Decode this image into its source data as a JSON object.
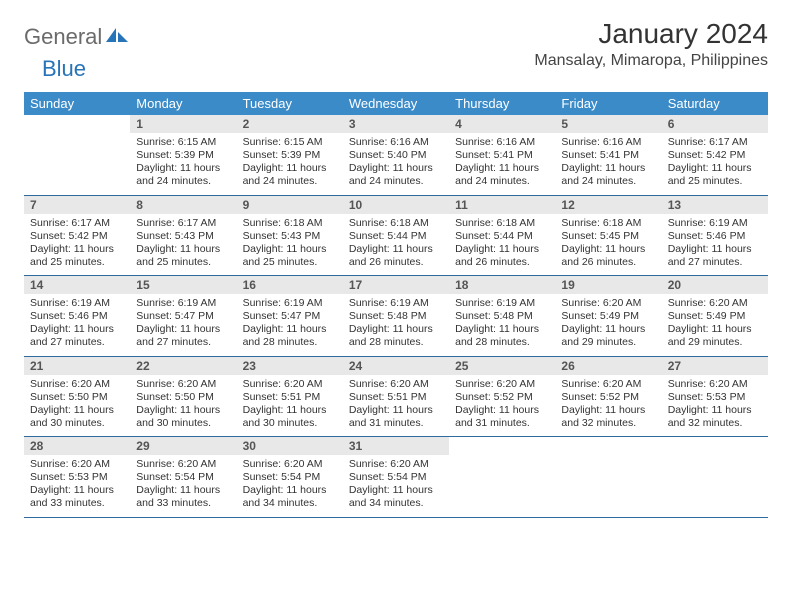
{
  "logo": {
    "part1": "General",
    "part2": "Blue"
  },
  "title": "January 2024",
  "location": "Mansalay, Mimaropa, Philippines",
  "colors": {
    "header_bg": "#3b8bc9",
    "header_text": "#ffffff",
    "daynum_bg": "#e8e8e8",
    "border": "#2c6aa0",
    "logo_gray": "#6b6b6b",
    "logo_blue": "#2874b8"
  },
  "weekdays": [
    "Sunday",
    "Monday",
    "Tuesday",
    "Wednesday",
    "Thursday",
    "Friday",
    "Saturday"
  ],
  "weeks": [
    [
      {
        "empty": true
      },
      {
        "day": "1",
        "sunrise": "Sunrise: 6:15 AM",
        "sunset": "Sunset: 5:39 PM",
        "daylight": "Daylight: 11 hours and 24 minutes."
      },
      {
        "day": "2",
        "sunrise": "Sunrise: 6:15 AM",
        "sunset": "Sunset: 5:39 PM",
        "daylight": "Daylight: 11 hours and 24 minutes."
      },
      {
        "day": "3",
        "sunrise": "Sunrise: 6:16 AM",
        "sunset": "Sunset: 5:40 PM",
        "daylight": "Daylight: 11 hours and 24 minutes."
      },
      {
        "day": "4",
        "sunrise": "Sunrise: 6:16 AM",
        "sunset": "Sunset: 5:41 PM",
        "daylight": "Daylight: 11 hours and 24 minutes."
      },
      {
        "day": "5",
        "sunrise": "Sunrise: 6:16 AM",
        "sunset": "Sunset: 5:41 PM",
        "daylight": "Daylight: 11 hours and 24 minutes."
      },
      {
        "day": "6",
        "sunrise": "Sunrise: 6:17 AM",
        "sunset": "Sunset: 5:42 PM",
        "daylight": "Daylight: 11 hours and 25 minutes."
      }
    ],
    [
      {
        "day": "7",
        "sunrise": "Sunrise: 6:17 AM",
        "sunset": "Sunset: 5:42 PM",
        "daylight": "Daylight: 11 hours and 25 minutes."
      },
      {
        "day": "8",
        "sunrise": "Sunrise: 6:17 AM",
        "sunset": "Sunset: 5:43 PM",
        "daylight": "Daylight: 11 hours and 25 minutes."
      },
      {
        "day": "9",
        "sunrise": "Sunrise: 6:18 AM",
        "sunset": "Sunset: 5:43 PM",
        "daylight": "Daylight: 11 hours and 25 minutes."
      },
      {
        "day": "10",
        "sunrise": "Sunrise: 6:18 AM",
        "sunset": "Sunset: 5:44 PM",
        "daylight": "Daylight: 11 hours and 26 minutes."
      },
      {
        "day": "11",
        "sunrise": "Sunrise: 6:18 AM",
        "sunset": "Sunset: 5:44 PM",
        "daylight": "Daylight: 11 hours and 26 minutes."
      },
      {
        "day": "12",
        "sunrise": "Sunrise: 6:18 AM",
        "sunset": "Sunset: 5:45 PM",
        "daylight": "Daylight: 11 hours and 26 minutes."
      },
      {
        "day": "13",
        "sunrise": "Sunrise: 6:19 AM",
        "sunset": "Sunset: 5:46 PM",
        "daylight": "Daylight: 11 hours and 27 minutes."
      }
    ],
    [
      {
        "day": "14",
        "sunrise": "Sunrise: 6:19 AM",
        "sunset": "Sunset: 5:46 PM",
        "daylight": "Daylight: 11 hours and 27 minutes."
      },
      {
        "day": "15",
        "sunrise": "Sunrise: 6:19 AM",
        "sunset": "Sunset: 5:47 PM",
        "daylight": "Daylight: 11 hours and 27 minutes."
      },
      {
        "day": "16",
        "sunrise": "Sunrise: 6:19 AM",
        "sunset": "Sunset: 5:47 PM",
        "daylight": "Daylight: 11 hours and 28 minutes."
      },
      {
        "day": "17",
        "sunrise": "Sunrise: 6:19 AM",
        "sunset": "Sunset: 5:48 PM",
        "daylight": "Daylight: 11 hours and 28 minutes."
      },
      {
        "day": "18",
        "sunrise": "Sunrise: 6:19 AM",
        "sunset": "Sunset: 5:48 PM",
        "daylight": "Daylight: 11 hours and 28 minutes."
      },
      {
        "day": "19",
        "sunrise": "Sunrise: 6:20 AM",
        "sunset": "Sunset: 5:49 PM",
        "daylight": "Daylight: 11 hours and 29 minutes."
      },
      {
        "day": "20",
        "sunrise": "Sunrise: 6:20 AM",
        "sunset": "Sunset: 5:49 PM",
        "daylight": "Daylight: 11 hours and 29 minutes."
      }
    ],
    [
      {
        "day": "21",
        "sunrise": "Sunrise: 6:20 AM",
        "sunset": "Sunset: 5:50 PM",
        "daylight": "Daylight: 11 hours and 30 minutes."
      },
      {
        "day": "22",
        "sunrise": "Sunrise: 6:20 AM",
        "sunset": "Sunset: 5:50 PM",
        "daylight": "Daylight: 11 hours and 30 minutes."
      },
      {
        "day": "23",
        "sunrise": "Sunrise: 6:20 AM",
        "sunset": "Sunset: 5:51 PM",
        "daylight": "Daylight: 11 hours and 30 minutes."
      },
      {
        "day": "24",
        "sunrise": "Sunrise: 6:20 AM",
        "sunset": "Sunset: 5:51 PM",
        "daylight": "Daylight: 11 hours and 31 minutes."
      },
      {
        "day": "25",
        "sunrise": "Sunrise: 6:20 AM",
        "sunset": "Sunset: 5:52 PM",
        "daylight": "Daylight: 11 hours and 31 minutes."
      },
      {
        "day": "26",
        "sunrise": "Sunrise: 6:20 AM",
        "sunset": "Sunset: 5:52 PM",
        "daylight": "Daylight: 11 hours and 32 minutes."
      },
      {
        "day": "27",
        "sunrise": "Sunrise: 6:20 AM",
        "sunset": "Sunset: 5:53 PM",
        "daylight": "Daylight: 11 hours and 32 minutes."
      }
    ],
    [
      {
        "day": "28",
        "sunrise": "Sunrise: 6:20 AM",
        "sunset": "Sunset: 5:53 PM",
        "daylight": "Daylight: 11 hours and 33 minutes."
      },
      {
        "day": "29",
        "sunrise": "Sunrise: 6:20 AM",
        "sunset": "Sunset: 5:54 PM",
        "daylight": "Daylight: 11 hours and 33 minutes."
      },
      {
        "day": "30",
        "sunrise": "Sunrise: 6:20 AM",
        "sunset": "Sunset: 5:54 PM",
        "daylight": "Daylight: 11 hours and 34 minutes."
      },
      {
        "day": "31",
        "sunrise": "Sunrise: 6:20 AM",
        "sunset": "Sunset: 5:54 PM",
        "daylight": "Daylight: 11 hours and 34 minutes."
      },
      {
        "empty": true
      },
      {
        "empty": true
      },
      {
        "empty": true
      }
    ]
  ]
}
